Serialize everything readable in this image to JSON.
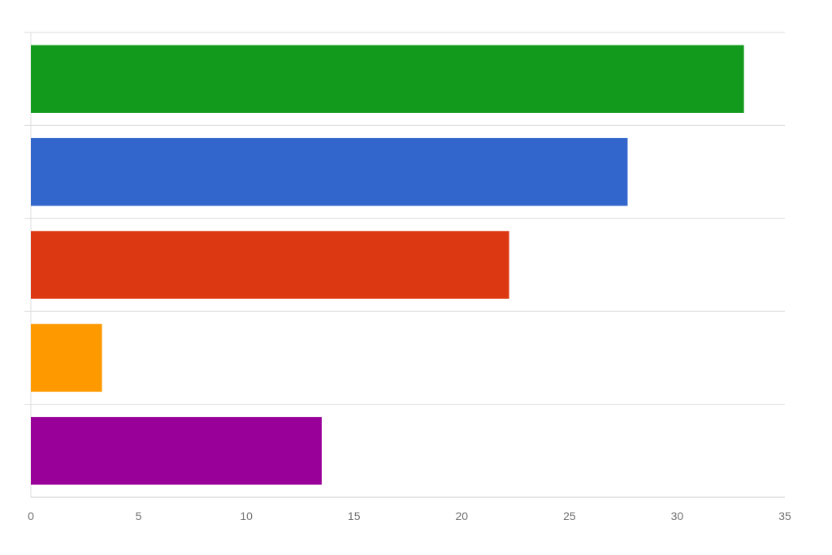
{
  "chart_data": {
    "type": "bar",
    "orientation": "horizontal",
    "categories": [
      "",
      "",
      "",
      "",
      ""
    ],
    "values": [
      33.1,
      27.7,
      22.2,
      3.3,
      13.5
    ],
    "bar_colors": [
      "#129a1c",
      "#3366cc",
      "#dc3912",
      "#ff9900",
      "#990099"
    ],
    "xlim": [
      0,
      35
    ],
    "x_ticks": [
      0,
      5,
      10,
      15,
      20,
      25,
      30,
      35
    ],
    "x_tick_labels": [
      "0",
      "5",
      "10",
      "15",
      "20",
      "25",
      "30",
      "35"
    ],
    "title": "",
    "xlabel": "",
    "ylabel": "",
    "grid": true,
    "legend": "none"
  }
}
